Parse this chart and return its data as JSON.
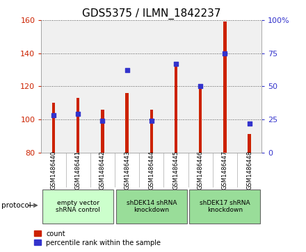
{
  "title": "GDS5375 / ILMN_1842237",
  "samples": [
    "GSM1486440",
    "GSM1486441",
    "GSM1486442",
    "GSM1486443",
    "GSM1486444",
    "GSM1486445",
    "GSM1486446",
    "GSM1486447",
    "GSM1486448"
  ],
  "counts": [
    110,
    113,
    106,
    116,
    106,
    133,
    120,
    159,
    91
  ],
  "percentile_ranks": [
    28,
    29,
    24,
    62,
    24,
    67,
    50,
    75,
    22
  ],
  "ylim_left": [
    80,
    160
  ],
  "ylim_right": [
    0,
    100
  ],
  "yticks_left": [
    80,
    100,
    120,
    140,
    160
  ],
  "yticks_right": [
    0,
    25,
    50,
    75,
    100
  ],
  "bar_color": "#cc2200",
  "dot_color": "#3333cc",
  "groups": [
    {
      "label": "empty vector\nshRNA control",
      "start": 0,
      "end": 3,
      "color": "#ccffcc"
    },
    {
      "label": "shDEK14 shRNA\nknockdown",
      "start": 3,
      "end": 6,
      "color": "#88ee88"
    },
    {
      "label": "shDEK17 shRNA\nknockdown",
      "start": 6,
      "end": 9,
      "color": "#88ee88"
    }
  ],
  "protocol_label": "protocol",
  "legend_count_label": "count",
  "legend_pct_label": "percentile rank within the sample",
  "plot_bg": "#f0f0f0",
  "title_fontsize": 11,
  "left_tick_color": "#cc2200",
  "right_tick_color": "#3333cc"
}
